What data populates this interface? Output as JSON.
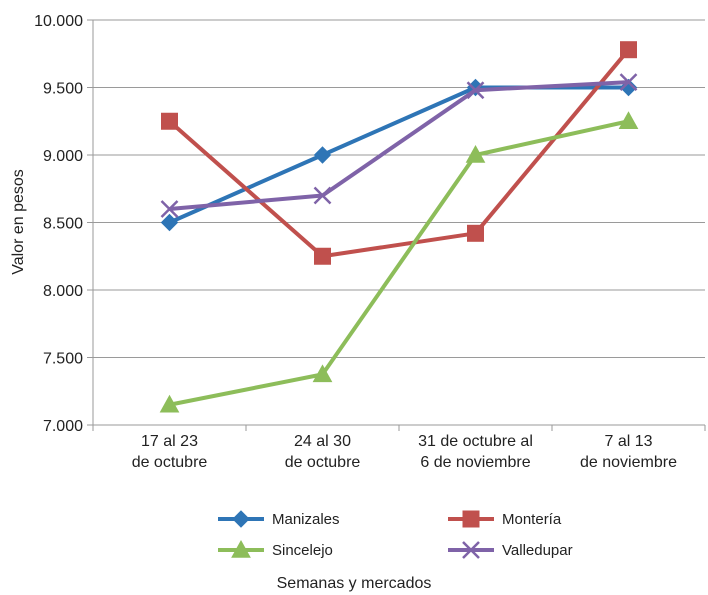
{
  "chart_data": {
    "type": "line",
    "categories": [
      [
        "17 al 23",
        "de octubre"
      ],
      [
        "24 al 30",
        "de octubre"
      ],
      [
        "31 de octubre al",
        "6 de noviembre"
      ],
      [
        "7 al 13",
        "de noviembre"
      ]
    ],
    "xlabel": "Semanas y mercados",
    "ylabel": "Valor en pesos",
    "ylim": [
      7000,
      10000
    ],
    "yticks": [
      {
        "value": 7000,
        "label": "7.000"
      },
      {
        "value": 7500,
        "label": "7.500"
      },
      {
        "value": 8000,
        "label": "8.000"
      },
      {
        "value": 8500,
        "label": "8.500"
      },
      {
        "value": 9000,
        "label": "9.000"
      },
      {
        "value": 9500,
        "label": "9.500"
      },
      {
        "value": 10000,
        "label": "10.000"
      }
    ],
    "grid": "horizontal",
    "legend": "bottom",
    "series": [
      {
        "name": "Manizales",
        "color": "#2E75B6",
        "marker": "diamond",
        "values": [
          8500,
          9000,
          9500,
          9500
        ]
      },
      {
        "name": "Montería",
        "color": "#C0504D",
        "marker": "square",
        "values": [
          9250,
          8250,
          8420,
          9780
        ]
      },
      {
        "name": "Sincelejo",
        "color": "#8DBD5A",
        "marker": "triangle",
        "values": [
          7150,
          7375,
          9000,
          9250
        ]
      },
      {
        "name": "Valledupar",
        "color": "#7F63A8",
        "marker": "x",
        "values": [
          8600,
          8700,
          9480,
          9540
        ]
      }
    ]
  }
}
